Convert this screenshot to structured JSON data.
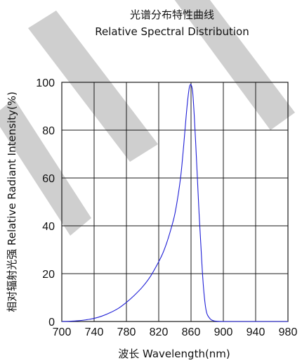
{
  "chart_data": {
    "type": "line",
    "title": "光谱分布特性曲线",
    "subtitle": "Relative Spectral Distribution",
    "xlabel": "波长  Wavelength(nm)",
    "ylabel": "相对辐射光强  Relative  Radiant Intensity(%)",
    "xlim": [
      700,
      980
    ],
    "ylim": [
      0,
      100
    ],
    "xticks": [
      "700",
      "740",
      "780",
      "820",
      "860",
      "900",
      "940",
      "980"
    ],
    "yticks": [
      "0",
      "20",
      "40",
      "60",
      "80",
      "100"
    ],
    "grid": true,
    "series": [
      {
        "color": "#1f1fd6",
        "x": [
          700,
          710,
          720,
          730,
          740,
          750,
          760,
          770,
          780,
          790,
          800,
          810,
          820,
          825,
          830,
          835,
          840,
          845,
          848,
          851,
          854,
          856,
          858,
          860,
          862,
          864,
          866,
          868,
          870,
          872,
          874,
          876,
          878,
          880,
          884,
          888,
          892,
          900,
          920,
          940,
          980
        ],
        "y": [
          0,
          0.1,
          0.3,
          0.7,
          1.3,
          2.3,
          3.7,
          5.5,
          8,
          11,
          14.5,
          19,
          25,
          28.5,
          33,
          38.5,
          45,
          55,
          63,
          74,
          86,
          93,
          98,
          99,
          96,
          86,
          73,
          59,
          45,
          33,
          21,
          12,
          6,
          3,
          1,
          0.3,
          0.1,
          0,
          0,
          0,
          0
        ]
      }
    ]
  }
}
